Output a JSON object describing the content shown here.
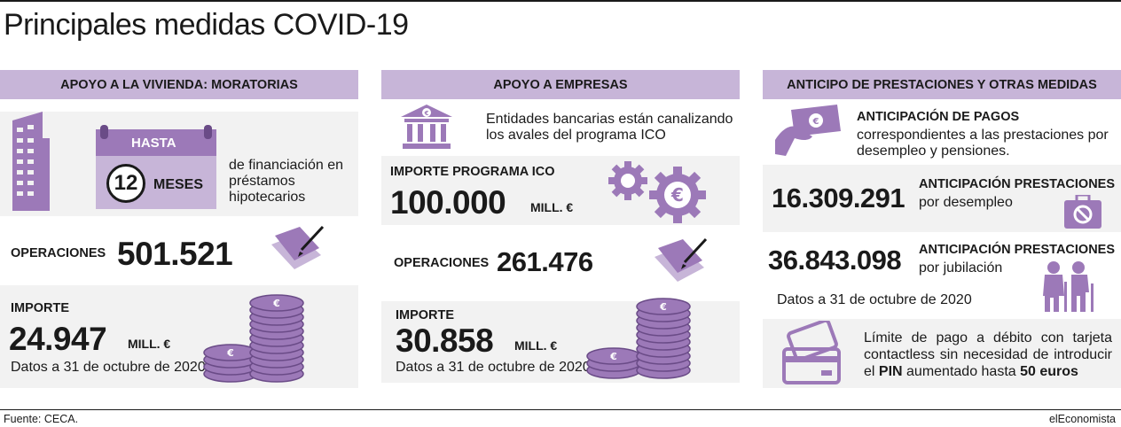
{
  "title": "Principales medidas COVID-19",
  "colors": {
    "accent": "#c7b5d8",
    "icon": "#9c79b8",
    "panel": "#f2f2f2"
  },
  "vivienda": {
    "header": "APOYO A LA VIVIENDA:  MORATORIAS",
    "hasta_label": "HASTA",
    "meses_value": "12",
    "meses_label": "MESES",
    "description": "de financiación en  préstamos hipotecarios",
    "operaciones_label": "OPERACIONES",
    "operaciones_value": "501.521",
    "importe_label": "IMPORTE",
    "importe_value": "24.947",
    "importe_unit": "MILL. €",
    "note": "Datos a 31 de octubre de 2020",
    "icons": [
      "building-icon",
      "calendar-icon",
      "signing-document-icon",
      "coin-stack-icon"
    ]
  },
  "empresas": {
    "header": "APOYO A EMPRESAS",
    "intro": "Entidades bancarias están  canalizando los avales del  programa ICO",
    "programa_label": "IMPORTE PROGRAMA ICO",
    "programa_value": "100.000",
    "programa_unit": "MILL. €",
    "operaciones_label": "OPERACIONES",
    "operaciones_value": "261.476",
    "importe_label": "IMPORTE",
    "importe_value": "30.858",
    "importe_unit": "MILL. €",
    "note": "Datos a 31 de octubre de 2020",
    "icons": [
      "bank-icon",
      "gears-euro-icon",
      "signing-document-icon",
      "coin-stack-icon"
    ]
  },
  "anticipo": {
    "header": "ANTICIPO DE PRESTACIONES Y OTRAS MEDIDAS",
    "pagos_title": "ANTICIPACIÓN DE PAGOS",
    "pagos_text": "correspondientes a las prestaciones por desempleo y pensiones.",
    "desempleo_value": "16.309.291",
    "desempleo_title": "ANTICIPACIÓN PRESTACIONES",
    "desempleo_sub": "por desempleo",
    "jubilacion_value": "36.843.098",
    "jubilacion_title": "ANTICIPACIÓN PRESTACIONES",
    "jubilacion_sub": "por jubilación",
    "note": "Datos a 31 de octubre de 2020",
    "card_text_1": "Límite de pago a débito  con tarjeta contactless  sin necesidad de  introducir el ",
    "card_pin": "PIN",
    "card_text_2": "  aumentado hasta ",
    "card_amount": "50 euros",
    "icons": [
      "hand-money-icon",
      "briefcase-icon",
      "elderly-couple-icon",
      "credit-cards-icon"
    ]
  },
  "footer": {
    "source": "Fuente: CECA.",
    "brand": "elEconomista"
  }
}
